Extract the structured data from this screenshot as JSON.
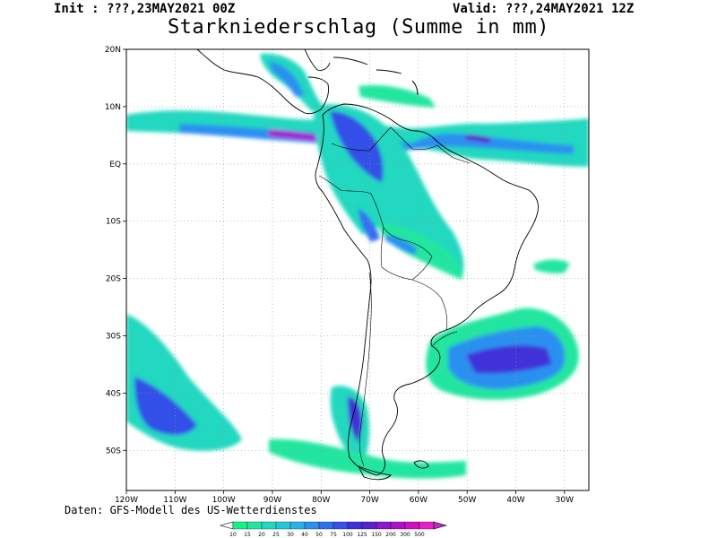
{
  "header": {
    "init": "Init : ???,23MAY2021 00Z",
    "valid": "Valid: ???,24MAY2021 12Z",
    "title": "Starkniederschlag (Summe in mm)"
  },
  "map": {
    "lon_range": [
      -120,
      -25
    ],
    "lat_range": [
      -57,
      20
    ],
    "lat_labels": [
      "20N",
      "10N",
      "EQ",
      "10S",
      "20S",
      "30S",
      "40S",
      "50S"
    ],
    "lon_labels": [
      "120W",
      "110W",
      "100W",
      "90W",
      "80W",
      "70W",
      "60W",
      "50W",
      "40W",
      "30W"
    ]
  },
  "credit": "Daten: GFS-Modell des US-Wetterdienstes",
  "colorbar": {
    "levels": [
      "10",
      "15",
      "20",
      "25",
      "30",
      "40",
      "50",
      "75",
      "100",
      "125",
      "150",
      "200",
      "300",
      "500"
    ],
    "colors": [
      "#18f080",
      "#20e6a0",
      "#20d8c0",
      "#22c8d8",
      "#28b0e8",
      "#2c90f0",
      "#3070f0",
      "#3850e8",
      "#4030d8",
      "#5a20d0",
      "#8a18d0",
      "#b010c8",
      "#d010c0",
      "#e820c8"
    ]
  }
}
